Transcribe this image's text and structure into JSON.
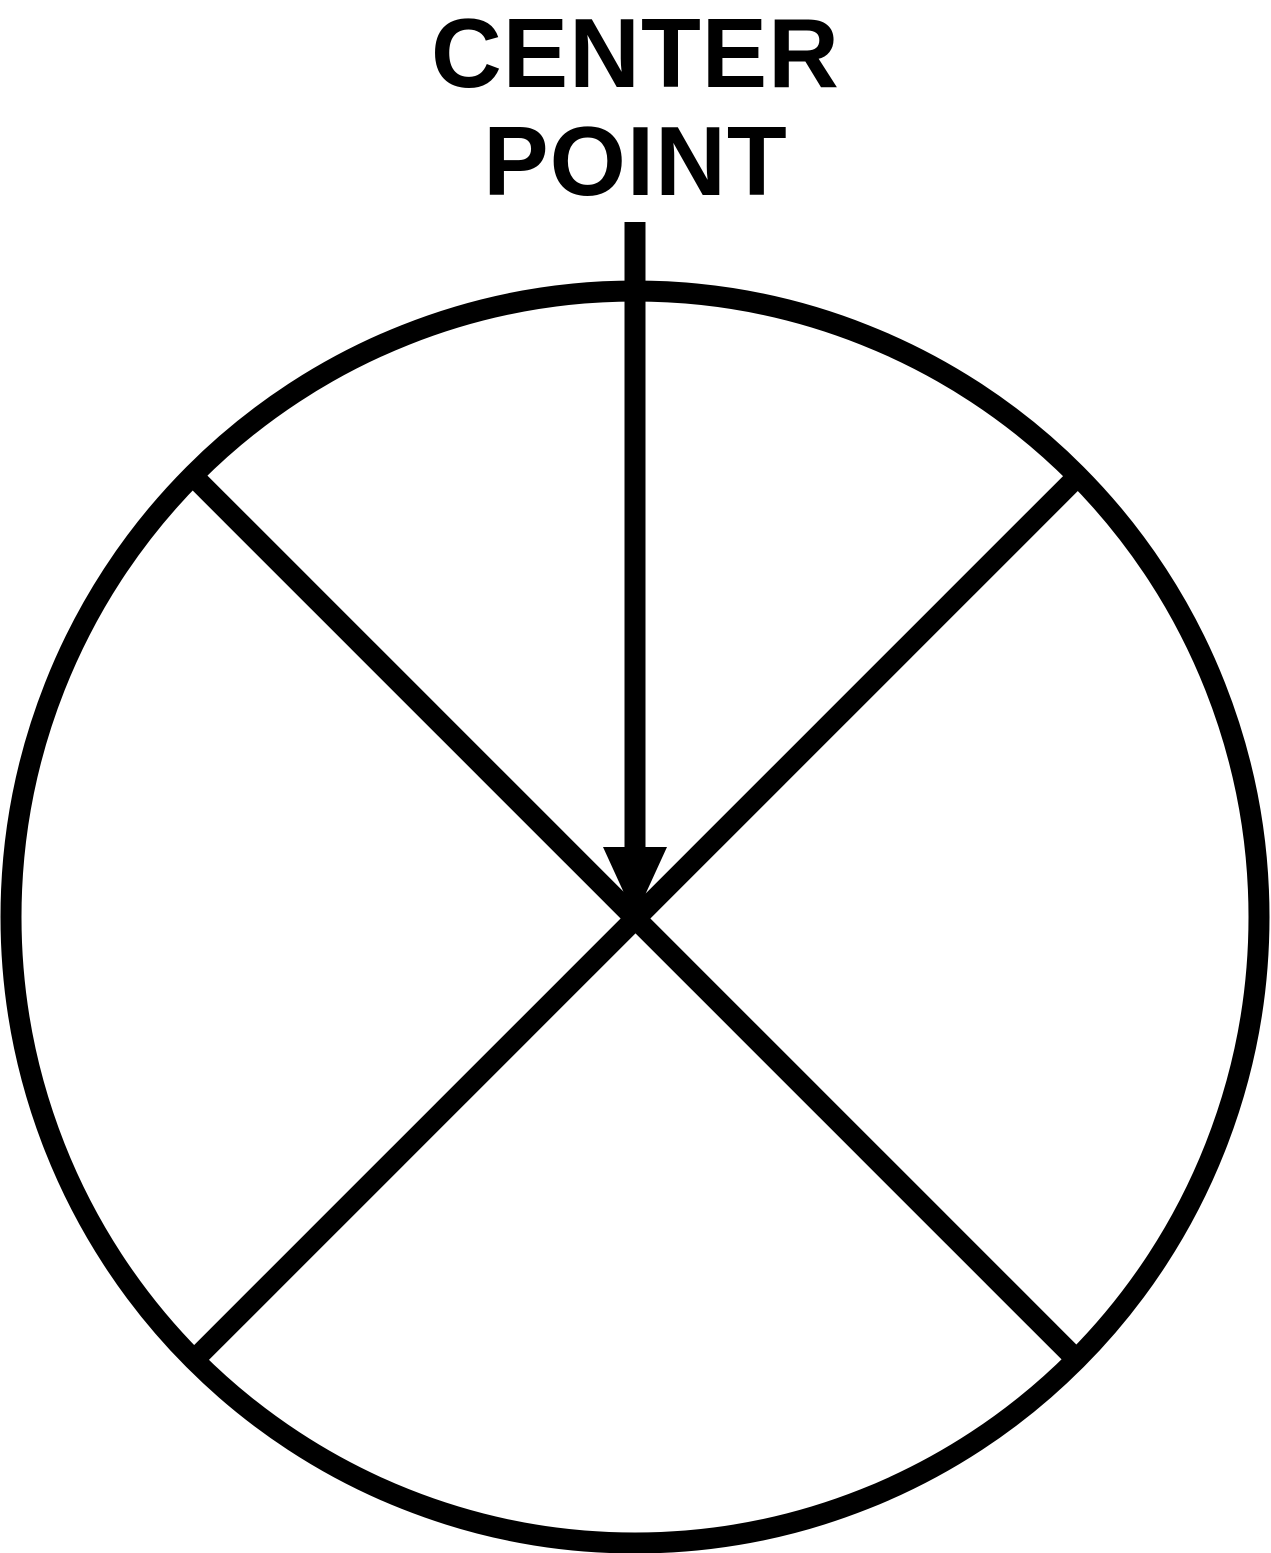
{
  "label": {
    "line1": "CENTER",
    "line2": "POINT"
  },
  "colors": {
    "stroke": "#000000",
    "background": "#ffffff"
  },
  "icons": {
    "pointer": "arrow-down-icon"
  }
}
